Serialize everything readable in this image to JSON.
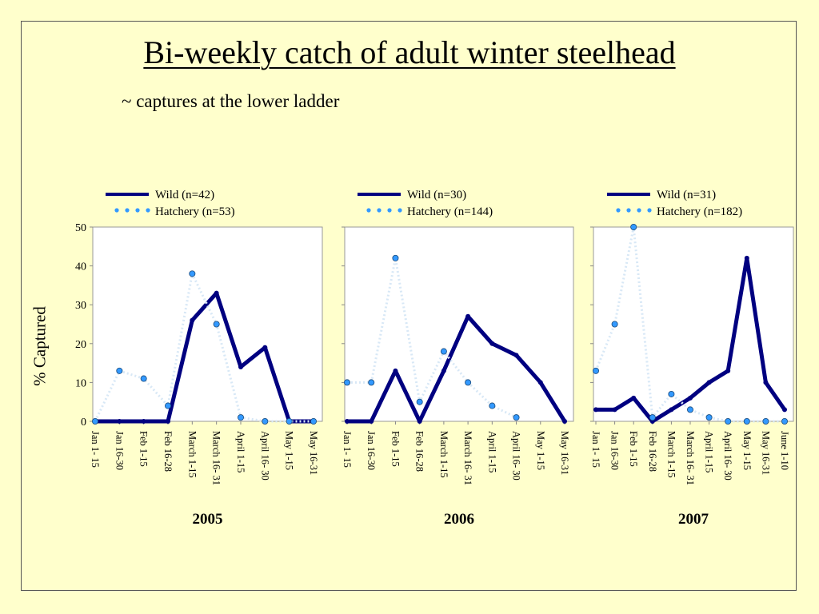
{
  "slide": {
    "title": "Bi-weekly catch of adult winter steelhead",
    "subtitle": "~ captures at the lower ladder",
    "background": "#ffffcc",
    "wild_color": "#000080",
    "hatchery_color": "#3399ff"
  },
  "chart_data": [
    {
      "type": "line",
      "year_label": "2005",
      "ylabel": "% Captured",
      "ylim": [
        0,
        50
      ],
      "yticks": [
        0,
        10,
        20,
        30,
        40,
        50
      ],
      "show_ytick_labels": true,
      "grid": false,
      "legend": "top",
      "categories": [
        "Jan 1- 15",
        "Jan 16-30",
        "Feb 1-15",
        "Feb 16-28",
        "March 1-15",
        "March 16- 31",
        "April 1-15",
        "April 16- 30",
        "May 1-15",
        "May 16-31"
      ],
      "series": [
        {
          "name": "Wild (n=42)",
          "style": "solid",
          "values": [
            0,
            0,
            0,
            0,
            26,
            33,
            14,
            19,
            0,
            0
          ]
        },
        {
          "name": "Hatchery (n=53)",
          "style": "dotted",
          "values": [
            0,
            13,
            11,
            4,
            38,
            25,
            1,
            0,
            0,
            0
          ]
        }
      ]
    },
    {
      "type": "line",
      "year_label": "2006",
      "ylim": [
        0,
        50
      ],
      "yticks": [
        0,
        10,
        20,
        30,
        40,
        50
      ],
      "show_ytick_labels": false,
      "grid": false,
      "legend": "top",
      "categories": [
        "Jan 1- 15",
        "Jan 16-30",
        "Feb 1-15",
        "Feb 16-28",
        "March 1-15",
        "March 16- 31",
        "April 1-15",
        "April 16- 30",
        "May 1-15",
        "May 16-31"
      ],
      "series": [
        {
          "name": "Wild (n=30)",
          "style": "solid",
          "values": [
            0,
            0,
            13,
            0,
            13,
            27,
            20,
            17,
            10,
            0
          ]
        },
        {
          "name": "Hatchery (n=144)",
          "style": "dotted",
          "values": [
            10,
            10,
            42,
            5,
            18,
            10,
            4,
            1,
            null,
            null
          ]
        }
      ]
    },
    {
      "type": "line",
      "year_label": "2007",
      "ylim": [
        0,
        50
      ],
      "yticks": [
        0,
        10,
        20,
        30,
        40,
        50
      ],
      "show_ytick_labels": false,
      "grid": false,
      "legend": "top",
      "categories": [
        "Jan 1- 15",
        "Jan 16-30",
        "Feb 1-15",
        "Feb 16-28",
        "March 1-15",
        "March 16- 31",
        "April 1-15",
        "April 16- 30",
        "May 1-15",
        "May 16-31",
        "June 1-10"
      ],
      "series": [
        {
          "name": "Wild (n=31)",
          "style": "solid",
          "values": [
            3,
            3,
            6,
            0,
            3,
            6,
            10,
            13,
            42,
            10,
            3
          ]
        },
        {
          "name": "Hatchery (n=182)",
          "style": "dotted",
          "values": [
            13,
            25,
            50,
            1,
            7,
            3,
            1,
            0,
            0,
            0,
            0
          ]
        }
      ]
    }
  ]
}
